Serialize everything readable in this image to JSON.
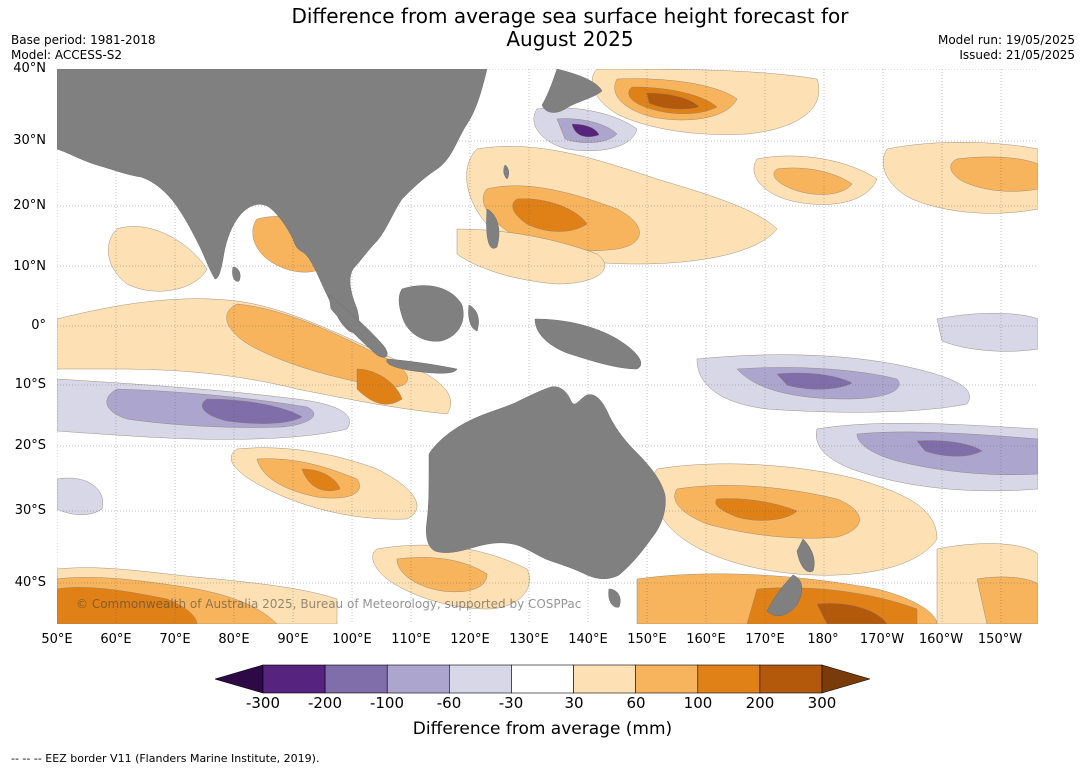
{
  "title_line1": "Difference from average sea surface height forecast for",
  "title_line2": "August 2025",
  "meta": {
    "base_period": "Base period: 1981-2018",
    "model": "Model: ACCESS-S2",
    "model_run": "Model run: 19/05/2025",
    "issued": "Issued: 21/05/2025"
  },
  "lat_labels": [
    "40°N",
    "30°N",
    "20°N",
    "10°N",
    "0°",
    "10°S",
    "20°S",
    "30°S",
    "40°S"
  ],
  "lon_labels": [
    "50°E",
    "60°E",
    "70°E",
    "80°E",
    "90°E",
    "100°E",
    "110°E",
    "120°E",
    "130°E",
    "140°E",
    "150°E",
    "160°E",
    "170°E",
    "180°",
    "170°W",
    "160°W",
    "150°W"
  ],
  "legend": {
    "ticks": [
      "-300",
      "-200",
      "-100",
      "-60",
      "-30",
      "30",
      "60",
      "100",
      "200",
      "300"
    ],
    "colors": [
      "#2d0a45",
      "#56237f",
      "#7f6ea9",
      "#aca6cf",
      "#d7d7e8",
      "#ffffff",
      "#fde0b3",
      "#f7b45d",
      "#e08118",
      "#b3590c",
      "#7a3b0b"
    ],
    "label": "Difference from average (mm)"
  },
  "land_color": "#808080",
  "copyright": "© Commonwealth of Australia 2025, Bureau of Meteorology, supported by COSPPac",
  "footer": "--  --  -- EEZ border V11 (Flanders Marine Institute, 2019)."
}
